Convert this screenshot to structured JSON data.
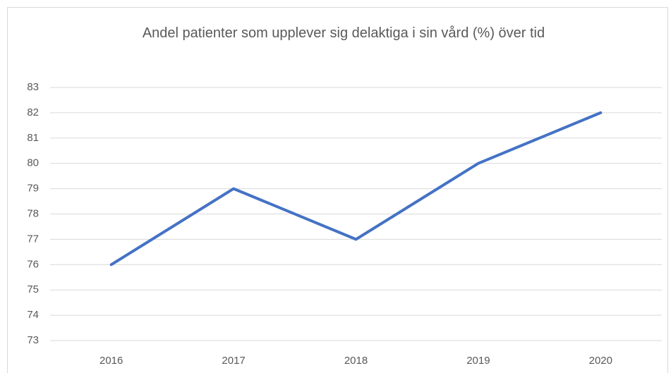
{
  "chart_data": {
    "type": "line",
    "title": "Andel patienter som upplever sig delaktiga i sin vård (%) över tid",
    "categories": [
      "2016",
      "2017",
      "2018",
      "2019",
      "2020"
    ],
    "series": [
      {
        "name": "Andel",
        "color": "#4472c4",
        "values": [
          76,
          79,
          77,
          80,
          82
        ]
      }
    ],
    "ylim": [
      73,
      83
    ],
    "yticks": [
      73,
      74,
      75,
      76,
      77,
      78,
      79,
      80,
      81,
      82,
      83
    ],
    "grid": true
  }
}
